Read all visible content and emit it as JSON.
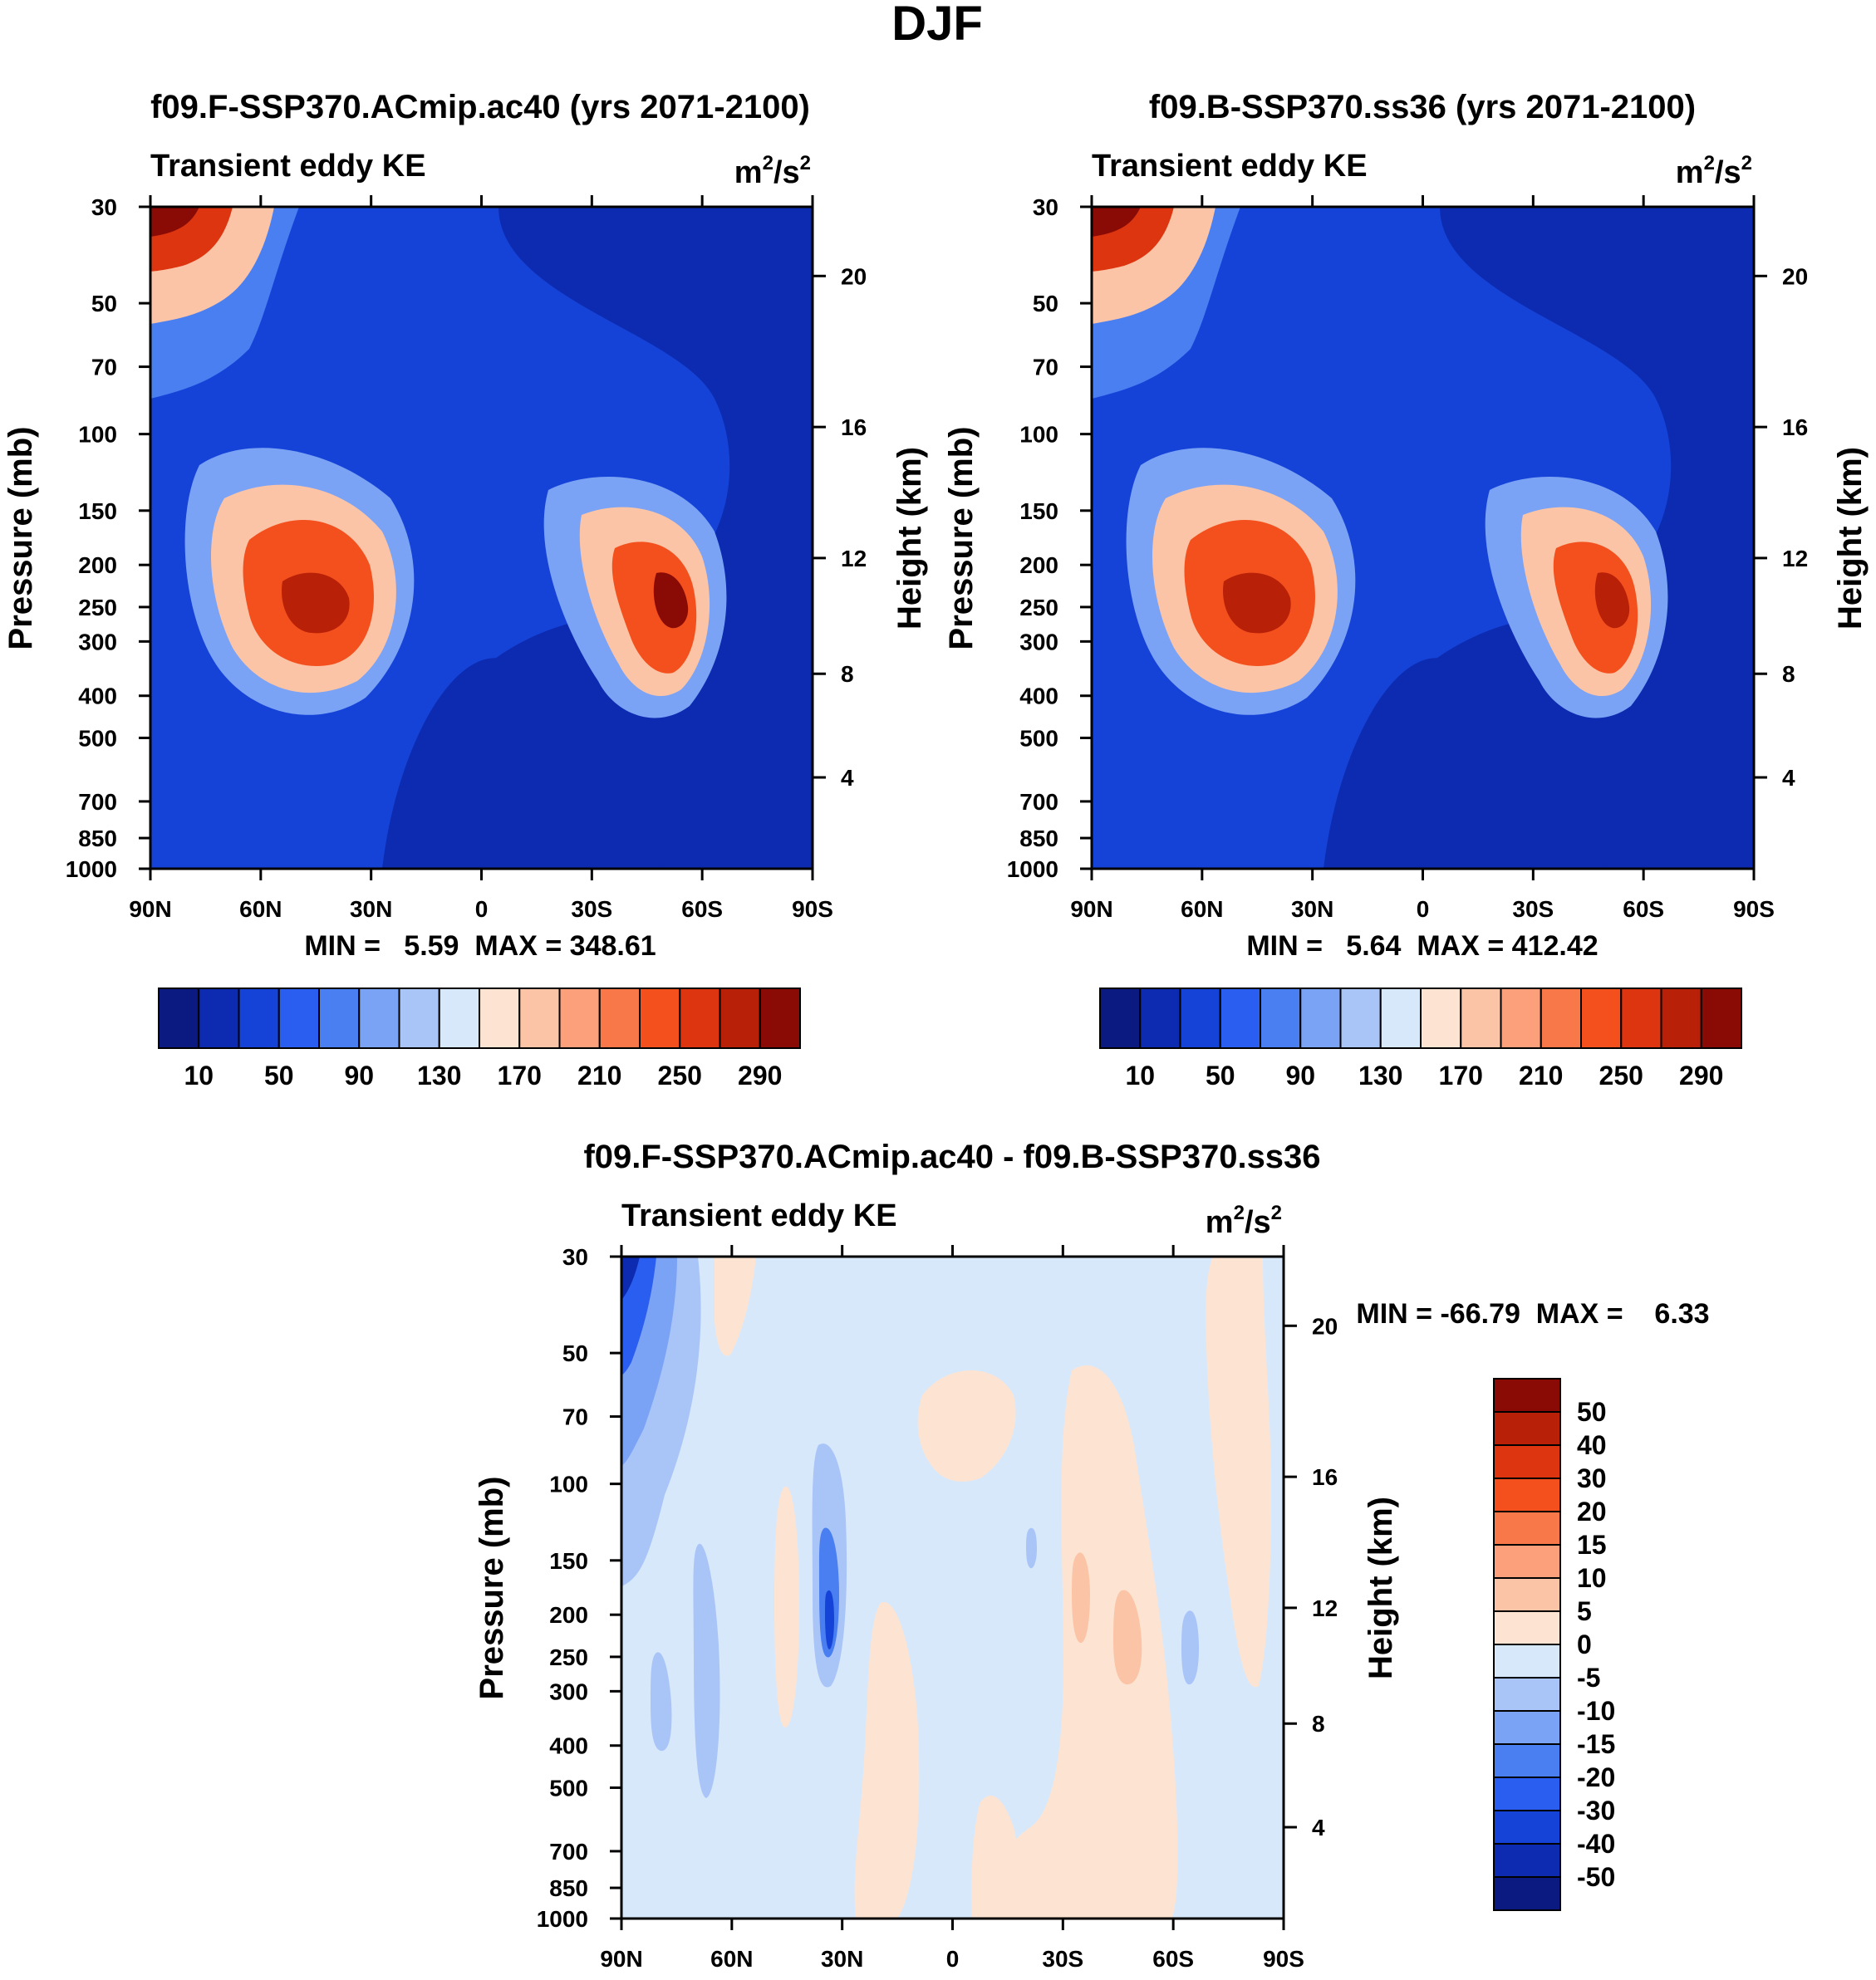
{
  "page_title": "DJF",
  "chart_data": [
    {
      "type": "heatmap",
      "id": "p1",
      "title": "f09.F-SSP370.ACmip.ac40 (yrs 2071-2100)",
      "left_string": "Transient eddy KE",
      "units_base": "m",
      "units_exp1": "2",
      "units_mid": "/s",
      "units_exp2": "2",
      "ylabel": "Pressure (mb)",
      "ylabel_right": "Height (km)",
      "pressure_ticks": [
        "30",
        "50",
        "70",
        "100",
        "150",
        "200",
        "250",
        "300",
        "400",
        "500",
        "700",
        "850",
        "1000"
      ],
      "height_ticks": [
        "20",
        "16",
        "12",
        "8",
        "4"
      ],
      "x_ticks": [
        "90N",
        "60N",
        "30N",
        "0",
        "30S",
        "60S",
        "90S"
      ],
      "min_label": "MIN =   5.59  MAX = 348.61",
      "min": 5.59,
      "max": 348.61,
      "colorbar_labels": [
        "10",
        "50",
        "90",
        "130",
        "170",
        "210",
        "250",
        "290"
      ]
    },
    {
      "type": "heatmap",
      "id": "p2",
      "title": "f09.B-SSP370.ss36 (yrs 2071-2100)",
      "left_string": "Transient eddy KE",
      "units_base": "m",
      "units_exp1": "2",
      "units_mid": "/s",
      "units_exp2": "2",
      "ylabel": "Pressure (mb)",
      "ylabel_right": "Height (km)",
      "pressure_ticks": [
        "30",
        "50",
        "70",
        "100",
        "150",
        "200",
        "250",
        "300",
        "400",
        "500",
        "700",
        "850",
        "1000"
      ],
      "height_ticks": [
        "20",
        "16",
        "12",
        "8",
        "4"
      ],
      "x_ticks": [
        "90N",
        "60N",
        "30N",
        "0",
        "30S",
        "60S",
        "90S"
      ],
      "min_label": "MIN =   5.64  MAX = 412.42",
      "min": 5.64,
      "max": 412.42,
      "colorbar_labels": [
        "10",
        "50",
        "90",
        "130",
        "170",
        "210",
        "250",
        "290"
      ]
    },
    {
      "type": "heatmap",
      "id": "p3",
      "title": "f09.F-SSP370.ACmip.ac40 - f09.B-SSP370.ss36",
      "left_string": "Transient eddy KE",
      "units_base": "m",
      "units_exp1": "2",
      "units_mid": "/s",
      "units_exp2": "2",
      "ylabel": "Pressure (mb)",
      "ylabel_right": "Height (km)",
      "pressure_ticks": [
        "30",
        "50",
        "70",
        "100",
        "150",
        "200",
        "250",
        "300",
        "400",
        "500",
        "700",
        "850",
        "1000"
      ],
      "height_ticks": [
        "20",
        "16",
        "12",
        "8",
        "4"
      ],
      "x_ticks": [
        "90N",
        "60N",
        "30N",
        "0",
        "30S",
        "60S",
        "90S"
      ],
      "min_label": "MIN = -66.79  MAX =    6.33",
      "min": -66.79,
      "max": 6.33,
      "colorbar_labels": [
        "50",
        "40",
        "30",
        "20",
        "15",
        "10",
        "5",
        "0",
        "-5",
        "-10",
        "-15",
        "-20",
        "-30",
        "-40",
        "-50"
      ]
    }
  ],
  "colors": {
    "abs_scale": [
      "#0b1a80",
      "#0d2bb0",
      "#1543d8",
      "#2a5ef0",
      "#4a7ff2",
      "#7ba3f5",
      "#a9c5f8",
      "#d8e8fb",
      "#fde4d2",
      "#fcc4a6",
      "#fba07a",
      "#f8784a",
      "#f3501e",
      "#dd3510",
      "#b82008",
      "#8a0b05"
    ],
    "diff_scale": [
      "#8a0b05",
      "#b82008",
      "#dd3510",
      "#f3501e",
      "#f8784a",
      "#fba07a",
      "#fcc4a6",
      "#fde4d2",
      "#d8e8fb",
      "#a9c5f8",
      "#7ba3f5",
      "#4a7ff2",
      "#2a5ef0",
      "#1543d8",
      "#0d2bb0",
      "#0b1a80"
    ]
  }
}
